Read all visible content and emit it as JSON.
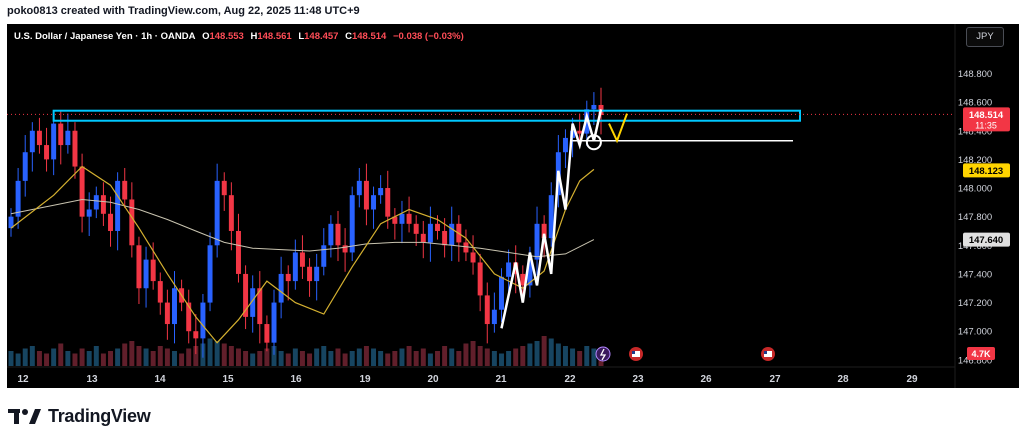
{
  "header": {
    "credit": "poko0813 created with TradingView.com, Aug 22, 2025 11:48 UTC+9"
  },
  "symbol": {
    "title": "U.S. Dollar / Japanese Yen · 1h · OANDA",
    "o_label": "O",
    "o_value": "148.553",
    "h_label": "H",
    "h_value": "148.561",
    "l_label": "L",
    "l_value": "148.457",
    "c_label": "C",
    "c_value": "148.514",
    "change": "−0.038 (−0.03%)"
  },
  "currency_button": {
    "label": "JPY"
  },
  "brand": {
    "name": "TradingView"
  },
  "colors": {
    "bg": "#000000",
    "up": "#2962ff",
    "down": "#f23645",
    "ma_fast": "#d4b030",
    "ma_slow": "#c9c4b0",
    "zone": "#00c8ff",
    "drawing": "#ffffff",
    "marker": "#ffd400",
    "price_badge": "#f23645",
    "ma_badge": "#ffd400",
    "slow_badge": "#e0e0e0"
  },
  "chart_data": {
    "type": "candlestick",
    "symbol": "USDJPY",
    "timeframe": "1h",
    "ylim": [
      146.75,
      148.95
    ],
    "y_ticks": [
      "148.800",
      "148.600",
      "148.400",
      "148.200",
      "148.000",
      "147.800",
      "147.600",
      "147.400",
      "147.200",
      "147.000",
      "146.800"
    ],
    "x_ticks": [
      "12",
      "13",
      "14",
      "15",
      "16",
      "19",
      "20",
      "21",
      "22",
      "23",
      "26",
      "27",
      "28",
      "29"
    ],
    "price_badge": {
      "value": 148.514,
      "label": "148.514",
      "countdown": "11:35"
    },
    "ma_fast_badge": {
      "value": 148.123,
      "label": "148.123"
    },
    "ma_slow_badge": {
      "value": 147.64,
      "label": "147.640"
    },
    "volume_badge": "4.7K",
    "closes": [
      [
        0,
        147.8
      ],
      [
        1,
        148.05
      ],
      [
        2,
        148.25
      ],
      [
        3,
        148.4
      ],
      [
        4,
        148.3
      ],
      [
        5,
        148.2
      ],
      [
        6,
        148.45
      ],
      [
        7,
        148.3
      ],
      [
        8,
        148.4
      ],
      [
        9,
        148.15
      ],
      [
        10,
        147.8
      ],
      [
        11,
        147.85
      ],
      [
        12,
        147.95
      ],
      [
        13,
        147.82
      ],
      [
        14,
        147.7
      ],
      [
        15,
        148.05
      ],
      [
        16,
        147.92
      ],
      [
        17,
        147.6
      ],
      [
        18,
        147.3
      ],
      [
        19,
        147.5
      ],
      [
        20,
        147.35
      ],
      [
        21,
        147.2
      ],
      [
        22,
        147.05
      ],
      [
        23,
        147.3
      ],
      [
        24,
        147.2
      ],
      [
        25,
        147.0
      ],
      [
        26,
        146.95
      ],
      [
        27,
        147.2
      ],
      [
        28,
        147.6
      ],
      [
        29,
        148.05
      ],
      [
        30,
        147.95
      ],
      [
        31,
        147.7
      ],
      [
        32,
        147.4
      ],
      [
        33,
        147.1
      ],
      [
        34,
        147.3
      ],
      [
        35,
        147.05
      ],
      [
        36,
        146.92
      ],
      [
        37,
        147.2
      ],
      [
        38,
        147.4
      ],
      [
        39,
        147.35
      ],
      [
        40,
        147.55
      ],
      [
        41,
        147.45
      ],
      [
        42,
        147.35
      ],
      [
        43,
        147.45
      ],
      [
        44,
        147.6
      ],
      [
        45,
        147.75
      ],
      [
        46,
        147.6
      ],
      [
        47,
        147.55
      ],
      [
        48,
        147.95
      ],
      [
        49,
        148.05
      ],
      [
        50,
        147.85
      ],
      [
        51,
        147.95
      ],
      [
        52,
        148.0
      ],
      [
        53,
        147.8
      ],
      [
        54,
        147.75
      ],
      [
        55,
        147.82
      ],
      [
        56,
        147.75
      ],
      [
        57,
        147.68
      ],
      [
        58,
        147.62
      ],
      [
        59,
        147.75
      ],
      [
        60,
        147.7
      ],
      [
        61,
        147.6
      ],
      [
        62,
        147.75
      ],
      [
        63,
        147.62
      ],
      [
        64,
        147.55
      ],
      [
        65,
        147.48
      ],
      [
        66,
        147.25
      ],
      [
        67,
        147.05
      ],
      [
        68,
        147.15
      ],
      [
        69,
        147.38
      ],
      [
        70,
        147.48
      ],
      [
        71,
        147.4
      ],
      [
        72,
        147.32
      ],
      [
        73,
        147.5
      ],
      [
        74,
        147.75
      ],
      [
        75,
        147.65
      ],
      [
        76,
        147.95
      ],
      [
        77,
        148.25
      ],
      [
        78,
        148.35
      ],
      [
        79,
        148.4
      ],
      [
        80,
        148.38
      ],
      [
        81,
        148.55
      ],
      [
        82,
        148.58
      ],
      [
        83,
        148.51
      ]
    ],
    "volumes": [
      6,
      5,
      7,
      8,
      6,
      5,
      7,
      9,
      6,
      5,
      7,
      6,
      8,
      5,
      6,
      7,
      9,
      10,
      8,
      7,
      6,
      8,
      7,
      6,
      5,
      7,
      8,
      9,
      11,
      10,
      9,
      8,
      7,
      6,
      5,
      6,
      7,
      8,
      6,
      5,
      7,
      6,
      5,
      7,
      8,
      6,
      7,
      5,
      6,
      7,
      8,
      7,
      6,
      5,
      6,
      7,
      8,
      6,
      7,
      5,
      6,
      8,
      7,
      6,
      9,
      10,
      8,
      7,
      6,
      5,
      6,
      7,
      8,
      9,
      10,
      12,
      11,
      9,
      8,
      7,
      6,
      8,
      7,
      5
    ],
    "ma_fast": [
      [
        0,
        147.72
      ],
      [
        6,
        147.95
      ],
      [
        10,
        148.15
      ],
      [
        14,
        148.02
      ],
      [
        18,
        147.72
      ],
      [
        22,
        147.4
      ],
      [
        26,
        147.1
      ],
      [
        29,
        146.92
      ],
      [
        32,
        147.08
      ],
      [
        36,
        147.35
      ],
      [
        40,
        147.2
      ],
      [
        44,
        147.12
      ],
      [
        48,
        147.45
      ],
      [
        52,
        147.75
      ],
      [
        56,
        147.85
      ],
      [
        60,
        147.78
      ],
      [
        64,
        147.65
      ],
      [
        68,
        147.4
      ],
      [
        72,
        147.3
      ],
      [
        75,
        147.42
      ],
      [
        78,
        147.85
      ],
      [
        80,
        148.05
      ],
      [
        82,
        148.13
      ]
    ],
    "ma_slow": [
      [
        0,
        147.82
      ],
      [
        6,
        147.88
      ],
      [
        10,
        147.92
      ],
      [
        14,
        147.9
      ],
      [
        18,
        147.85
      ],
      [
        22,
        147.78
      ],
      [
        26,
        147.7
      ],
      [
        30,
        147.62
      ],
      [
        34,
        147.58
      ],
      [
        38,
        147.57
      ],
      [
        42,
        147.56
      ],
      [
        46,
        147.58
      ],
      [
        50,
        147.61
      ],
      [
        54,
        147.62
      ],
      [
        58,
        147.62
      ],
      [
        62,
        147.6
      ],
      [
        66,
        147.58
      ],
      [
        70,
        147.55
      ],
      [
        74,
        147.52
      ],
      [
        78,
        147.54
      ],
      [
        82,
        147.64
      ]
    ],
    "resistance_zone": {
      "low": 148.47,
      "high": 148.54
    },
    "horizontal_line": 148.33,
    "projection": "zigzag up into resistance zone, then V pullback"
  }
}
